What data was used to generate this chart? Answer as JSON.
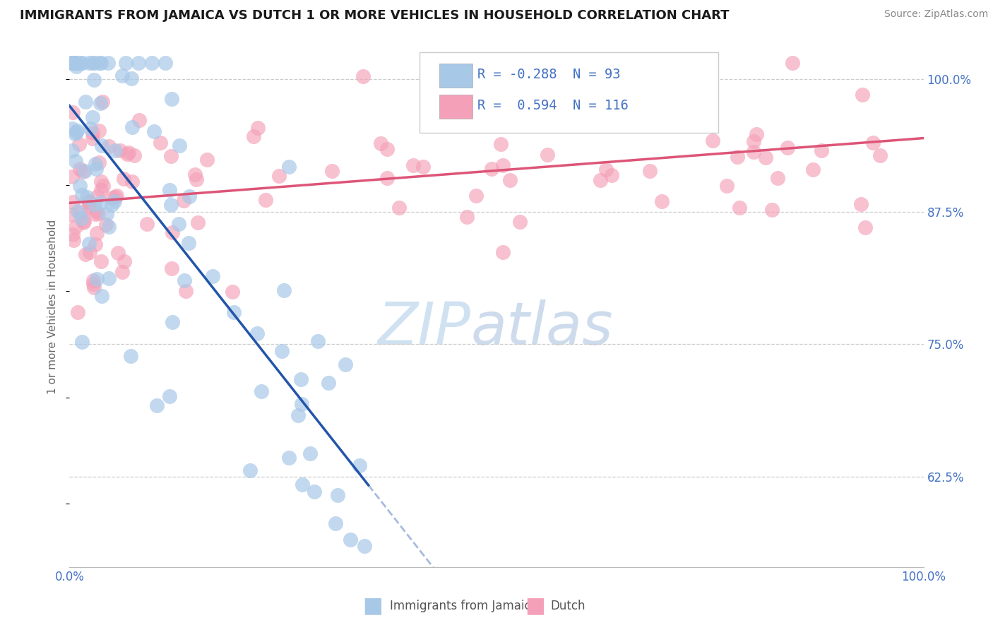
{
  "title": "IMMIGRANTS FROM JAMAICA VS DUTCH 1 OR MORE VEHICLES IN HOUSEHOLD CORRELATION CHART",
  "source": "Source: ZipAtlas.com",
  "ylabel": "1 or more Vehicles in Household",
  "jamaica_R": -0.288,
  "jamaica_N": 93,
  "dutch_R": 0.594,
  "dutch_N": 116,
  "jamaica_color": "#a8c8e8",
  "dutch_color": "#f4a0b8",
  "jamaica_line_color": "#2255aa",
  "dutch_line_color": "#dd5577",
  "watermark_color": "#d0e4f4",
  "background_color": "#ffffff",
  "xlim": [
    0.0,
    100.0
  ],
  "ylim": [
    54.0,
    103.0
  ],
  "y_ticks": [
    62.5,
    75.0,
    87.5,
    100.0
  ],
  "x_ticks": [
    0.0,
    100.0
  ],
  "grid_color": "#cccccc",
  "axis_label_color": "#4472c4",
  "title_color": "#1a1a1a",
  "source_color": "#888888",
  "legend_r_color": "#4472c4",
  "jamaica_seed": 42,
  "dutch_seed": 7
}
